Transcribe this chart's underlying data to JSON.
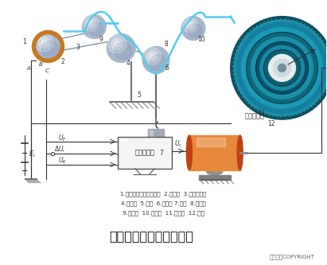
{
  "title": "布料张力测量及控制原理",
  "subtitle_copyright": "东方仿真COPYRIGHT",
  "bg_color": "#ffffff",
  "legend_line1": "1.电位器式角位移传感器  2.从动轮  3.同步齿形带",
  "legend_line2": "4.摆动轮  5.支架  6.摆动杆 7.砝码  8.张力辊",
  "legend_line3": "9.传动辊  10.传动辊  11.卷取辊  12.布料",
  "servo_label": "伺服电动机",
  "amplifier_label": "功率放大器",
  "cyan_color": "#55ccee",
  "roller_orange": "#e8883a",
  "roller_dark_orange": "#c04015",
  "roller_mid_orange": "#d06020",
  "teal_disk_outer": "#1a6e80",
  "teal_disk_main": "#1a90a8",
  "ball_color": "#b8c4d8",
  "ball_highlight": "#dde8f5",
  "wire_color": "#333333",
  "ground_color": "#999999",
  "label_color": "#444444",
  "title_color": "#111111",
  "amp_box_color": "#f5f5f5",
  "amp_border": "#555555",
  "orange_ring_color": "#c87820"
}
